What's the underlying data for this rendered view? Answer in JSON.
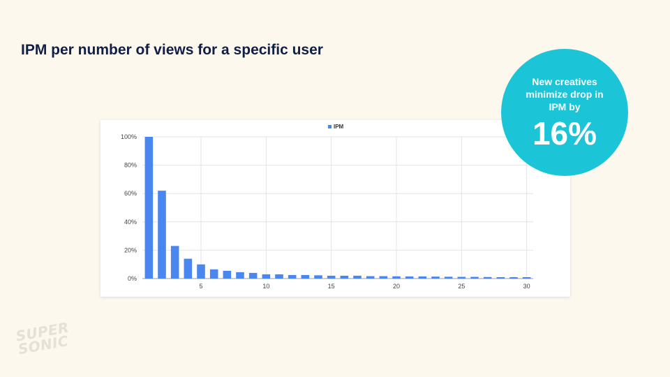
{
  "slide": {
    "title": "IPM per number of views for a specific user"
  },
  "callout": {
    "text": "New creatives\nminimize drop in\nIPM by",
    "value": "16%"
  },
  "logo": {
    "line1": "SUPER",
    "line2": "SONIC"
  },
  "colors": {
    "background": "#fdf8ee",
    "bar": "#4a86f0",
    "callout": "#1bc4d6",
    "title": "#0f1f45"
  },
  "chart_data": {
    "type": "bar",
    "legend": [
      "IPM"
    ],
    "legend_position": "top-center",
    "grid": true,
    "x": [
      1,
      2,
      3,
      4,
      5,
      6,
      7,
      8,
      9,
      10,
      11,
      12,
      13,
      14,
      15,
      16,
      17,
      18,
      19,
      20,
      21,
      22,
      23,
      24,
      25,
      26,
      27,
      28,
      29,
      30
    ],
    "x_tick_labels": [
      "5",
      "10",
      "15",
      "20",
      "25",
      "30"
    ],
    "x_ticks": [
      5,
      10,
      15,
      20,
      25,
      30
    ],
    "ylim": [
      0,
      100
    ],
    "y_ticks": [
      0,
      20,
      40,
      60,
      80,
      100
    ],
    "y_tick_labels": [
      "0%",
      "20%",
      "40%",
      "60%",
      "80%",
      "100%"
    ],
    "series": [
      {
        "name": "IPM",
        "values": [
          100,
          62,
          23,
          14,
          10,
          6.5,
          5.5,
          4.5,
          4,
          3,
          3,
          2.5,
          2.5,
          2.3,
          2,
          2,
          2,
          1.7,
          1.7,
          1.6,
          1.5,
          1.5,
          1.4,
          1.3,
          1.2,
          1.2,
          1.1,
          1,
          1,
          1
        ]
      }
    ],
    "xlabel": "",
    "ylabel": ""
  }
}
